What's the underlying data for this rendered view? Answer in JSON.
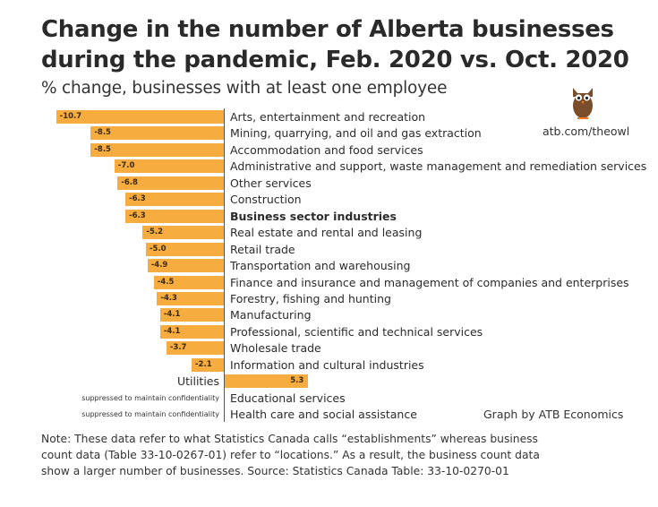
{
  "header": {
    "title_line1": "Change in the number of Alberta businesses",
    "title_line2": "during the pandemic, Feb. 2020 vs. Oct. 2020",
    "subtitle": "% change, businesses with at least one employee"
  },
  "branding": {
    "logo_icon": "owl-icon",
    "site": "atb.com/theowl",
    "credit": "Graph by ATB Economics"
  },
  "colors": {
    "bar": "#f7ac3f",
    "axis": "#555555",
    "owl": "#7a4e2a"
  },
  "note": "Note: These data refer to what Statistics Canada calls “establishments” whereas business count data (Table 33-10-0267-01) refer to “locations.” As a result, the business count data show a larger number of businesses. Source: Statistics Canada Table: 33-10-0270-01",
  "chart_data": {
    "type": "bar",
    "orientation": "horizontal",
    "title": "Change in the number of Alberta businesses during the pandemic, Feb. 2020 vs. Oct. 2020",
    "subtitle": "% change, businesses with at least one employee",
    "xlabel": "",
    "ylabel": "",
    "grid": false,
    "categories": [
      "Arts, entertainment and recreation",
      "Mining, quarrying, and oil and gas extraction",
      "Accommodation and food services",
      "Administrative and support, waste management and remediation services",
      "Other services",
      "Construction",
      "Business sector industries",
      "Real estate and rental and leasing",
      "Retail trade",
      "Transportation and warehousing",
      "Finance and insurance and management of companies and enterprises",
      "Forestry, fishing and hunting",
      "Manufacturing",
      "Professional, scientific and technical services",
      "Wholesale trade",
      "Information and cultural industries",
      "Utilities",
      "Educational services",
      "Health care and social assistance"
    ],
    "values": [
      -10.7,
      -8.5,
      -8.5,
      -7.0,
      -6.8,
      -6.3,
      -6.3,
      -5.2,
      -5.0,
      -4.9,
      -4.5,
      -4.3,
      -4.1,
      -4.1,
      -3.7,
      -2.1,
      5.3,
      null,
      null
    ],
    "value_labels": [
      "-10.7",
      "-8.5",
      "-8.5",
      "-7.0",
      "-6.8",
      "-6.3",
      "-6.3",
      "-5.2",
      "-5.0",
      "-4.9",
      "-4.5",
      "-4.3",
      "-4.1",
      "-4.1",
      "-3.7",
      "-2.1",
      "5.3",
      "",
      ""
    ],
    "annotations": {
      "Educational services": "suppressed to maintain confidentiality",
      "Health care and social assistance": "suppressed to maintain confidentiality"
    },
    "bold_categories": [
      "Business sector industries"
    ],
    "xlim": [
      -10.7,
      5.3
    ]
  }
}
